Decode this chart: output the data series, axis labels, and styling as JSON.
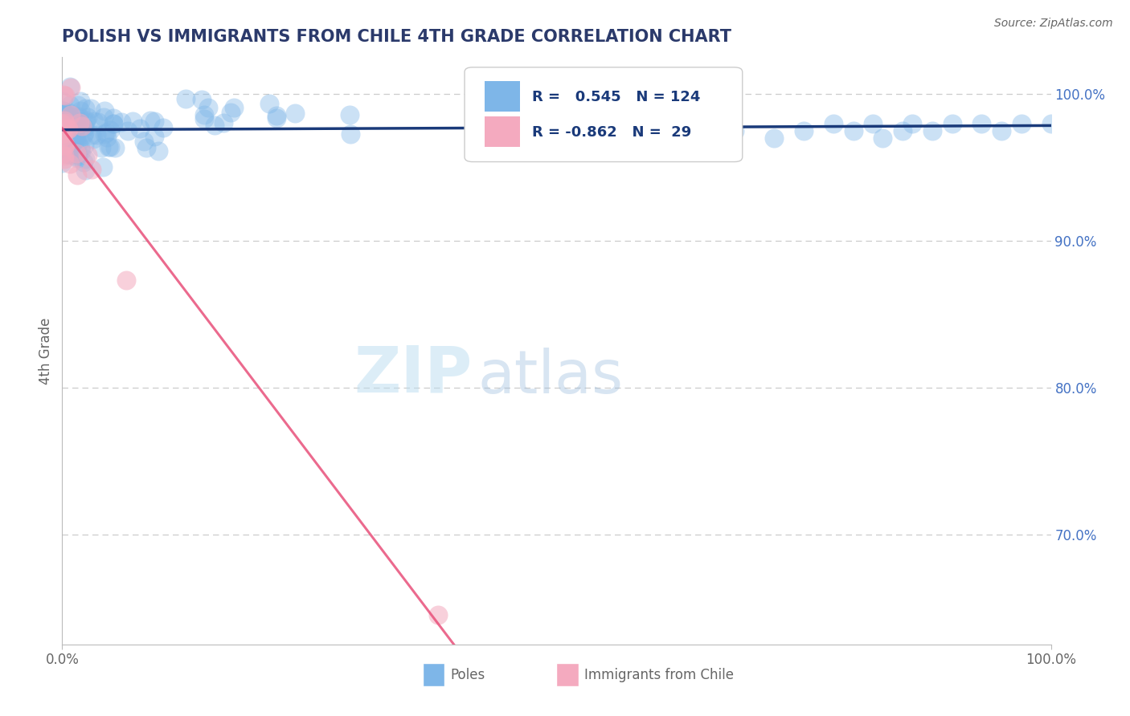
{
  "title": "POLISH VS IMMIGRANTS FROM CHILE 4TH GRADE CORRELATION CHART",
  "source": "Source: ZipAtlas.com",
  "ylabel": "4th Grade",
  "ytick_labels": [
    "70.0%",
    "80.0%",
    "90.0%",
    "100.0%"
  ],
  "ytick_values": [
    0.7,
    0.8,
    0.9,
    1.0
  ],
  "xlim": [
    0.0,
    1.0
  ],
  "ylim": [
    0.625,
    1.025
  ],
  "blue_color": "#7EB6E8",
  "pink_color": "#F4AABF",
  "blue_line_color": "#1A3A7A",
  "pink_line_color": "#E8507A",
  "legend_blue_label": "Poles",
  "legend_pink_label": "Immigrants from Chile",
  "R_blue": 0.545,
  "N_blue": 124,
  "R_pink": -0.862,
  "N_pink": 29,
  "watermark_zip": "ZIP",
  "watermark_atlas": "atlas",
  "background_color": "#FFFFFF",
  "grid_color": "#CCCCCC",
  "title_color": "#2B3A6B",
  "axis_label_color": "#666666",
  "right_axis_color": "#4472C4"
}
